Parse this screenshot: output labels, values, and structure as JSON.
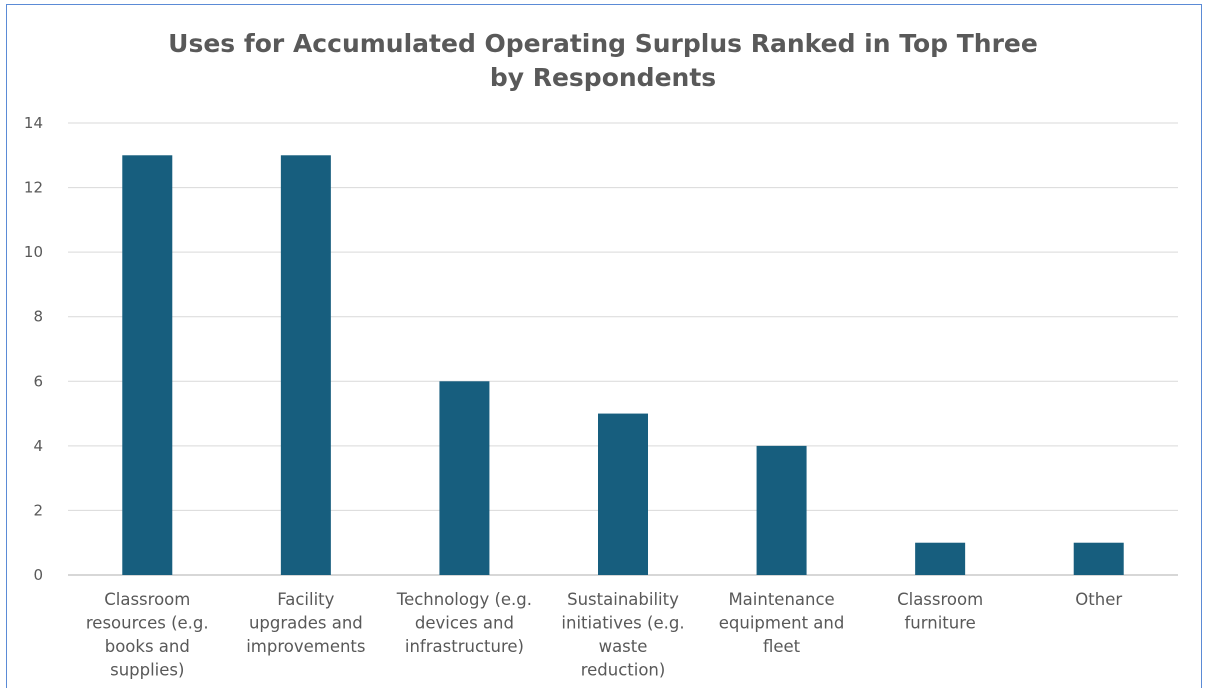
{
  "chart_data": {
    "type": "bar",
    "title_lines": [
      "Uses for Accumulated  Operating Surplus Ranked in Top Three",
      "by Respondents"
    ],
    "categories": [
      [
        "Classroom",
        "resources (e.g.",
        "books and",
        "supplies)"
      ],
      [
        "Facility",
        "upgrades and",
        "improvements"
      ],
      [
        "Technology (e.g.",
        "devices and",
        "infrastructure)"
      ],
      [
        "Sustainability",
        "initiatives (e.g.",
        "waste",
        "reduction)"
      ],
      [
        "Maintenance",
        "equipment and",
        "fleet"
      ],
      [
        "Classroom",
        "furniture"
      ],
      [
        "Other"
      ]
    ],
    "values": [
      13,
      13,
      6,
      5,
      4,
      1,
      1
    ],
    "ylim": [
      0,
      14
    ],
    "yticks": [
      0,
      2,
      4,
      6,
      8,
      10,
      12,
      14
    ],
    "xlabel": "",
    "ylabel": "",
    "grid": true,
    "legend": "none",
    "bar_color": "#175e7e",
    "grid_color": "#d9d9d9",
    "axis_color": "#bfbfbf"
  }
}
